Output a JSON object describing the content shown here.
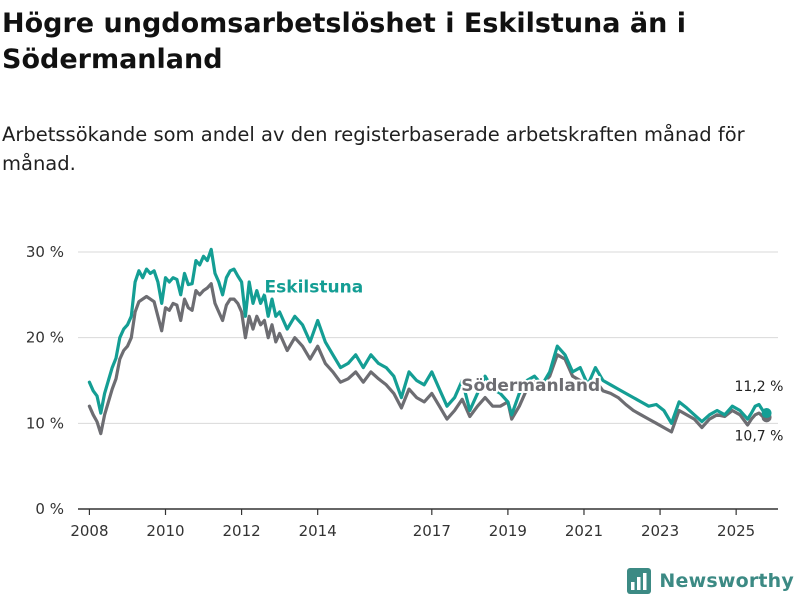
{
  "title": "Högre ungdomsarbetslöshet i Eskilstuna än i Södermanland",
  "subtitle": "Arbetssökande som andel av den registerbaserade arbetskraften månad för månad.",
  "brand": {
    "name": "Newsworthy",
    "icon": "bar-chart-icon"
  },
  "colors": {
    "eskilstuna": "#149e94",
    "sodermanland": "#6d6d72",
    "grid": "#d9d9d9",
    "axis": "#333333",
    "brand": "#3c8a84"
  },
  "chart_data": {
    "type": "line",
    "title": "Högre ungdomsarbetslöshet i Eskilstuna än i Södermanland",
    "xlabel": "",
    "ylabel": "",
    "ylim": [
      0,
      30
    ],
    "xlim": [
      2007.7,
      2026.1
    ],
    "grid": true,
    "y_ticks": [
      0,
      10,
      20,
      30
    ],
    "y_tick_labels": [
      "0 %",
      "10 %",
      "20 %",
      "30 %"
    ],
    "x_ticks": [
      2008,
      2010,
      2012,
      2014,
      2017,
      2019,
      2021,
      2023,
      2025
    ],
    "x_tick_labels": [
      "2008",
      "2010",
      "2012",
      "2014",
      "2017",
      "2019",
      "2021",
      "2023",
      "2025"
    ],
    "series": [
      {
        "name": "Eskilstuna",
        "label": "Eskilstuna",
        "end_label": "11,2 %",
        "x": [
          2008.0,
          2008.1,
          2008.2,
          2008.3,
          2008.4,
          2008.5,
          2008.6,
          2008.7,
          2008.8,
          2008.9,
          2009.0,
          2009.1,
          2009.2,
          2009.3,
          2009.4,
          2009.5,
          2009.6,
          2009.7,
          2009.8,
          2009.9,
          2010.0,
          2010.1,
          2010.2,
          2010.3,
          2010.4,
          2010.5,
          2010.6,
          2010.7,
          2010.8,
          2010.9,
          2011.0,
          2011.1,
          2011.2,
          2011.3,
          2011.4,
          2011.5,
          2011.6,
          2011.7,
          2011.8,
          2011.9,
          2012.0,
          2012.1,
          2012.2,
          2012.3,
          2012.4,
          2012.5,
          2012.6,
          2012.7,
          2012.8,
          2012.9,
          2013.0,
          2013.2,
          2013.4,
          2013.6,
          2013.8,
          2014.0,
          2014.2,
          2014.4,
          2014.6,
          2014.8,
          2015.0,
          2015.2,
          2015.4,
          2015.6,
          2015.8,
          2016.0,
          2016.2,
          2016.4,
          2016.6,
          2016.8,
          2017.0,
          2017.2,
          2017.4,
          2017.6,
          2017.8,
          2018.0,
          2018.2,
          2018.4,
          2018.6,
          2018.8,
          2019.0,
          2019.1,
          2019.3,
          2019.5,
          2019.7,
          2019.9,
          2020.1,
          2020.3,
          2020.5,
          2020.7,
          2020.9,
          2021.1,
          2021.3,
          2021.5,
          2021.7,
          2021.9,
          2022.1,
          2022.3,
          2022.5,
          2022.7,
          2022.9,
          2023.1,
          2023.3,
          2023.5,
          2023.7,
          2023.9,
          2024.1,
          2024.3,
          2024.5,
          2024.7,
          2024.9,
          2025.1,
          2025.3,
          2025.4,
          2025.5,
          2025.6,
          2025.7,
          2025.8
        ],
        "values": [
          14.8,
          13.8,
          13.2,
          11.2,
          13.5,
          15.0,
          16.5,
          17.6,
          20.0,
          21.0,
          21.5,
          22.5,
          26.5,
          27.8,
          27.0,
          28.0,
          27.5,
          27.8,
          26.5,
          24.0,
          27.0,
          26.5,
          27.0,
          26.8,
          25.0,
          27.5,
          26.2,
          26.3,
          29.0,
          28.5,
          29.5,
          29.0,
          30.3,
          27.5,
          26.5,
          25.0,
          27.0,
          27.8,
          28.0,
          27.2,
          26.5,
          22.5,
          26.5,
          24.0,
          25.5,
          24.0,
          25.0,
          22.5,
          24.5,
          22.5,
          23.0,
          21.0,
          22.5,
          21.5,
          19.5,
          22.0,
          19.5,
          18.0,
          16.5,
          17.0,
          18.0,
          16.5,
          18.0,
          17.0,
          16.5,
          15.5,
          13.0,
          16.0,
          15.0,
          14.5,
          16.0,
          14.0,
          12.0,
          13.0,
          15.0,
          11.5,
          13.5,
          15.5,
          14.0,
          13.5,
          12.5,
          11.0,
          13.5,
          15.0,
          15.5,
          14.5,
          16.0,
          19.0,
          18.0,
          16.0,
          16.5,
          14.5,
          16.5,
          15.0,
          14.5,
          14.0,
          13.5,
          13.0,
          12.5,
          12.0,
          12.2,
          11.5,
          10.0,
          12.5,
          11.8,
          11.0,
          10.2,
          11.0,
          11.5,
          11.0,
          12.0,
          11.5,
          10.5,
          11.2,
          12.0,
          12.2,
          11.5,
          11.2
        ]
      },
      {
        "name": "Södermanland",
        "label": "Södermanland",
        "end_label": "10,7 %",
        "x": [
          2008.0,
          2008.1,
          2008.2,
          2008.3,
          2008.4,
          2008.5,
          2008.6,
          2008.7,
          2008.8,
          2008.9,
          2009.0,
          2009.1,
          2009.2,
          2009.3,
          2009.4,
          2009.5,
          2009.6,
          2009.7,
          2009.8,
          2009.9,
          2010.0,
          2010.1,
          2010.2,
          2010.3,
          2010.4,
          2010.5,
          2010.6,
          2010.7,
          2010.8,
          2010.9,
          2011.0,
          2011.1,
          2011.2,
          2011.3,
          2011.4,
          2011.5,
          2011.6,
          2011.7,
          2011.8,
          2011.9,
          2012.0,
          2012.1,
          2012.2,
          2012.3,
          2012.4,
          2012.5,
          2012.6,
          2012.7,
          2012.8,
          2012.9,
          2013.0,
          2013.2,
          2013.4,
          2013.6,
          2013.8,
          2014.0,
          2014.2,
          2014.4,
          2014.6,
          2014.8,
          2015.0,
          2015.2,
          2015.4,
          2015.6,
          2015.8,
          2016.0,
          2016.2,
          2016.4,
          2016.6,
          2016.8,
          2017.0,
          2017.2,
          2017.4,
          2017.6,
          2017.8,
          2018.0,
          2018.2,
          2018.4,
          2018.6,
          2018.8,
          2019.0,
          2019.1,
          2019.3,
          2019.5,
          2019.7,
          2019.9,
          2020.1,
          2020.3,
          2020.5,
          2020.7,
          2020.9,
          2021.1,
          2021.3,
          2021.5,
          2021.7,
          2021.9,
          2022.1,
          2022.3,
          2022.5,
          2022.7,
          2022.9,
          2023.1,
          2023.3,
          2023.5,
          2023.7,
          2023.9,
          2024.1,
          2024.3,
          2024.5,
          2024.7,
          2024.9,
          2025.1,
          2025.3,
          2025.4,
          2025.5,
          2025.6,
          2025.7,
          2025.8
        ],
        "values": [
          12.0,
          11.0,
          10.2,
          8.8,
          11.0,
          12.5,
          14.0,
          15.2,
          17.5,
          18.5,
          19.0,
          20.0,
          23.0,
          24.2,
          24.5,
          24.8,
          24.5,
          24.2,
          22.5,
          20.8,
          23.5,
          23.2,
          24.0,
          23.8,
          22.0,
          24.5,
          23.5,
          23.2,
          25.5,
          25.0,
          25.5,
          25.8,
          26.3,
          24.0,
          23.0,
          22.0,
          23.8,
          24.5,
          24.5,
          24.0,
          23.0,
          20.0,
          22.5,
          21.0,
          22.5,
          21.5,
          22.0,
          20.0,
          21.5,
          19.5,
          20.5,
          18.5,
          20.0,
          19.0,
          17.5,
          19.0,
          17.0,
          16.0,
          14.8,
          15.2,
          16.0,
          14.8,
          16.0,
          15.2,
          14.5,
          13.5,
          11.8,
          14.0,
          13.0,
          12.5,
          13.5,
          12.0,
          10.5,
          11.5,
          12.8,
          10.8,
          12.0,
          13.0,
          12.0,
          12.0,
          12.5,
          10.5,
          12.0,
          14.0,
          14.8,
          14.5,
          15.5,
          18.0,
          17.5,
          15.5,
          15.0,
          14.0,
          15.0,
          13.8,
          13.5,
          13.0,
          12.2,
          11.5,
          11.0,
          10.5,
          10.0,
          9.5,
          9.0,
          11.5,
          11.0,
          10.5,
          9.5,
          10.5,
          11.0,
          10.8,
          11.5,
          11.0,
          9.8,
          10.5,
          11.0,
          11.2,
          10.8,
          10.7
        ]
      }
    ]
  }
}
